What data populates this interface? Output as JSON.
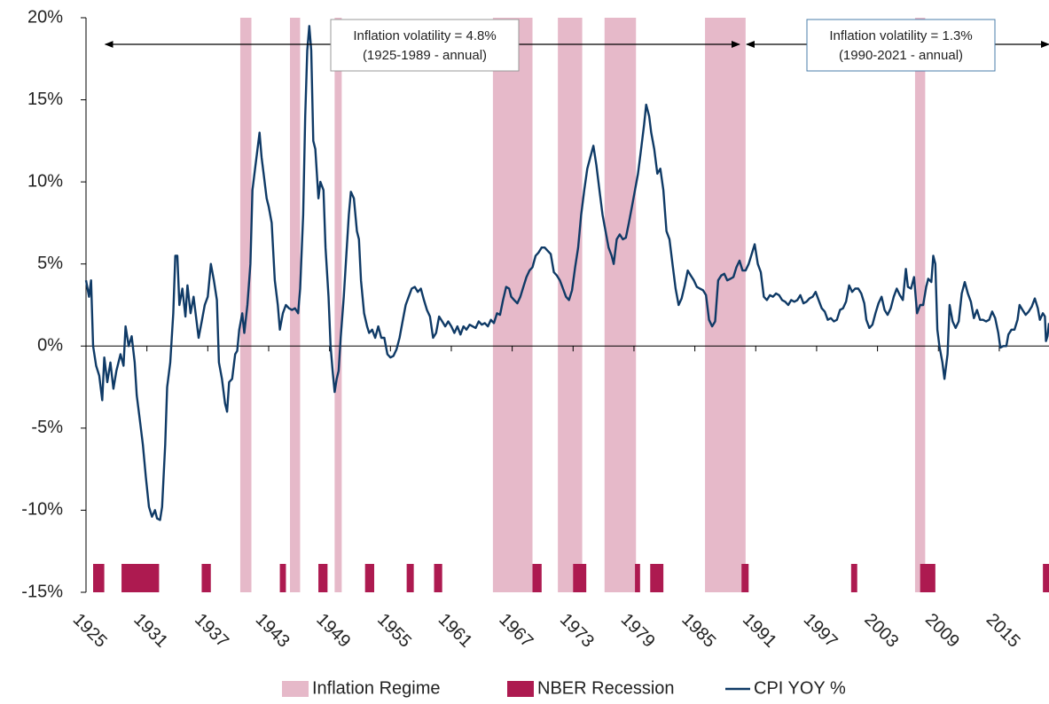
{
  "chart_data": {
    "type": "line",
    "xlim": [
      1925,
      2019.9
    ],
    "xticks": [
      1925,
      1931,
      1937,
      1943,
      1949,
      1955,
      1961,
      1967,
      1973,
      1979,
      1985,
      1991,
      1997,
      2003,
      2009,
      2015
    ],
    "ylim": [
      -15,
      20
    ],
    "yticks": [
      {
        "value": 20,
        "label": "20%"
      },
      {
        "value": 15,
        "label": "15%"
      },
      {
        "value": 10,
        "label": "10%"
      },
      {
        "value": 5,
        "label": "5%"
      },
      {
        "value": 0,
        "label": "0%"
      },
      {
        "value": -5,
        "label": "-5%"
      },
      {
        "value": -10,
        "label": "-10%"
      },
      {
        "value": -15,
        "label": "-15%"
      }
    ],
    "inflation_regimes": {
      "name": "Inflation Regime",
      "color": "#e6b9c9",
      "ranges": [
        [
          1940.2,
          1941.3
        ],
        [
          1945.1,
          1946.1
        ],
        [
          1949.5,
          1950.2
        ],
        [
          1965.1,
          1969.0
        ],
        [
          1971.5,
          1973.9
        ],
        [
          1976.1,
          1979.2
        ],
        [
          1986.0,
          1990.0
        ],
        [
          2006.7,
          2007.7
        ]
      ]
    },
    "recessions": {
      "name": "NBER Recession",
      "color": "#ad1a50",
      "ranges": [
        [
          1925.7,
          1926.8
        ],
        [
          1928.5,
          1932.2
        ],
        [
          1936.4,
          1937.3
        ],
        [
          1944.1,
          1944.7
        ],
        [
          1947.9,
          1948.8
        ],
        [
          1952.5,
          1953.4
        ],
        [
          1956.6,
          1957.3
        ],
        [
          1959.3,
          1960.1
        ],
        [
          1969.0,
          1969.9
        ],
        [
          1973.0,
          1974.3
        ],
        [
          1979.1,
          1979.6
        ],
        [
          1980.6,
          1981.9
        ],
        [
          1989.6,
          1990.3
        ],
        [
          2000.4,
          2001.0
        ],
        [
          2007.2,
          2008.7
        ],
        [
          2019.3,
          2019.9
        ]
      ]
    },
    "annotations": [
      {
        "lines": [
          "Inflation volatility = 4.8%",
          "(1925-1989 - annual)"
        ],
        "span": [
          1926.9,
          1989.4
        ]
      },
      {
        "lines": [
          "Inflation volatility = 1.3%",
          "(1990-2021 - annual)"
        ],
        "span": [
          1990.1,
          2019.9
        ]
      }
    ],
    "x": [
      1925.0,
      1925.3,
      1925.5,
      1925.7,
      1926.0,
      1926.3,
      1926.6,
      1926.8,
      1927.1,
      1927.4,
      1927.7,
      1928.0,
      1928.4,
      1928.7,
      1928.9,
      1929.2,
      1929.5,
      1929.8,
      1930.0,
      1930.3,
      1930.6,
      1930.9,
      1931.2,
      1931.5,
      1931.8,
      1932.0,
      1932.3,
      1932.5,
      1932.8,
      1933.0,
      1933.3,
      1933.6,
      1933.8,
      1934.0,
      1934.2,
      1934.5,
      1934.8,
      1935.0,
      1935.3,
      1935.6,
      1935.9,
      1936.1,
      1936.4,
      1936.7,
      1937.0,
      1937.3,
      1937.6,
      1937.9,
      1938.1,
      1938.4,
      1938.7,
      1938.9,
      1939.1,
      1939.4,
      1939.7,
      1939.9,
      1940.1,
      1940.4,
      1940.6,
      1940.9,
      1941.2,
      1941.4,
      1941.7,
      1941.9,
      1942.1,
      1942.3,
      1942.5,
      1942.8,
      1943.0,
      1943.3,
      1943.6,
      1943.9,
      1944.1,
      1944.4,
      1944.7,
      1945.0,
      1945.3,
      1945.6,
      1945.9,
      1946.1,
      1946.4,
      1946.6,
      1946.8,
      1947.0,
      1947.2,
      1947.4,
      1947.6,
      1947.9,
      1948.1,
      1948.4,
      1948.6,
      1948.9,
      1949.1,
      1949.3,
      1949.5,
      1949.7,
      1949.9,
      1950.1,
      1950.4,
      1950.7,
      1950.9,
      1951.1,
      1951.4,
      1951.7,
      1951.9,
      1952.1,
      1952.4,
      1952.7,
      1952.9,
      1953.2,
      1953.5,
      1953.8,
      1954.1,
      1954.4,
      1954.7,
      1955.0,
      1955.3,
      1955.6,
      1955.9,
      1956.2,
      1956.5,
      1956.8,
      1957.1,
      1957.4,
      1957.7,
      1958.0,
      1958.3,
      1958.6,
      1958.9,
      1959.2,
      1959.5,
      1959.8,
      1960.1,
      1960.4,
      1960.7,
      1961.0,
      1961.3,
      1961.6,
      1961.9,
      1962.2,
      1962.5,
      1962.8,
      1963.1,
      1963.4,
      1963.7,
      1964.0,
      1964.3,
      1964.6,
      1964.9,
      1965.2,
      1965.5,
      1965.8,
      1966.1,
      1966.4,
      1966.7,
      1966.9,
      1967.2,
      1967.5,
      1967.8,
      1968.1,
      1968.4,
      1968.7,
      1969.0,
      1969.3,
      1969.6,
      1969.9,
      1970.2,
      1970.5,
      1970.8,
      1971.1,
      1971.4,
      1971.7,
      1972.0,
      1972.3,
      1972.6,
      1972.9,
      1973.2,
      1973.5,
      1973.8,
      1974.1,
      1974.4,
      1974.7,
      1975.0,
      1975.3,
      1975.6,
      1975.9,
      1976.2,
      1976.5,
      1976.8,
      1977.0,
      1977.3,
      1977.6,
      1977.9,
      1978.2,
      1978.5,
      1978.8,
      1979.1,
      1979.4,
      1979.7,
      1980.0,
      1980.2,
      1980.5,
      1980.7,
      1981.0,
      1981.3,
      1981.6,
      1981.9,
      1982.2,
      1982.5,
      1982.8,
      1983.1,
      1983.4,
      1983.7,
      1984.0,
      1984.3,
      1984.6,
      1984.9,
      1985.2,
      1985.5,
      1985.8,
      1986.1,
      1986.4,
      1986.7,
      1987.0,
      1987.3,
      1987.6,
      1987.9,
      1988.2,
      1988.5,
      1988.8,
      1989.1,
      1989.4,
      1989.7,
      1990.0,
      1990.3,
      1990.6,
      1990.9,
      1991.2,
      1991.5,
      1991.8,
      1992.1,
      1992.4,
      1992.7,
      1993.0,
      1993.3,
      1993.6,
      1993.9,
      1994.2,
      1994.5,
      1994.8,
      1995.1,
      1995.4,
      1995.7,
      1996.0,
      1996.3,
      1996.6,
      1996.9,
      1997.2,
      1997.5,
      1997.8,
      1998.1,
      1998.4,
      1998.7,
      1999.0,
      1999.3,
      1999.6,
      1999.9,
      2000.2,
      2000.5,
      2000.8,
      2001.1,
      2001.4,
      2001.7,
      2001.9,
      2002.2,
      2002.5,
      2002.8,
      2003.1,
      2003.4,
      2003.7,
      2004.0,
      2004.3,
      2004.6,
      2004.9,
      2005.2,
      2005.5,
      2005.8,
      2006.0,
      2006.3,
      2006.6,
      2006.9,
      2007.2,
      2007.5,
      2007.8,
      2008.0,
      2008.3,
      2008.5,
      2008.7,
      2008.9,
      2009.1,
      2009.4,
      2009.6,
      2009.9,
      2010.1,
      2010.4,
      2010.7,
      2011.0,
      2011.3,
      2011.6,
      2011.9,
      2012.2,
      2012.5,
      2012.8,
      2013.1,
      2013.4,
      2013.7,
      2014.0,
      2014.3,
      2014.6,
      2014.9,
      2015.1,
      2015.4,
      2015.7,
      2015.9,
      2016.2,
      2016.5,
      2016.8,
      2017.0,
      2017.3,
      2017.6,
      2017.9,
      2018.2,
      2018.5,
      2018.8,
      2019.0,
      2019.3,
      2019.5,
      2019.6,
      2019.75,
      2019.9
    ],
    "series": [
      {
        "name": "CPI YOY %",
        "color": "#0f3a66",
        "values": [
          4.0,
          3.0,
          4.0,
          0,
          -1.2,
          -1.8,
          -3.3,
          -0.7,
          -2.2,
          -1.0,
          -2.6,
          -1.5,
          -0.5,
          -1.2,
          1.2,
          0.0,
          0.6,
          -1.0,
          -3.0,
          -4.5,
          -6.0,
          -8.0,
          -9.8,
          -10.4,
          -10.0,
          -10.5,
          -10.6,
          -9.8,
          -6.0,
          -2.5,
          -1.0,
          2.0,
          5.5,
          5.5,
          2.5,
          3.5,
          1.8,
          3.7,
          2.0,
          3.0,
          1.5,
          0.5,
          1.5,
          2.5,
          3.0,
          5.0,
          4.0,
          2.8,
          -1.0,
          -2.0,
          -3.5,
          -4.0,
          -2.2,
          -2.0,
          -0.5,
          -0.3,
          1.0,
          2.0,
          0.8,
          2.5,
          5.0,
          9.5,
          11.0,
          12.0,
          13.0,
          11.5,
          10.5,
          9.0,
          8.5,
          7.5,
          4.0,
          2.5,
          1.0,
          2.0,
          2.5,
          2.3,
          2.2,
          2.3,
          2.0,
          3.5,
          8.0,
          14.0,
          18.0,
          19.5,
          18.0,
          12.5,
          12.0,
          9.0,
          10.0,
          9.5,
          6.0,
          3.0,
          0.0,
          -1.5,
          -2.8,
          -2.0,
          -1.5,
          0.5,
          3.0,
          6.0,
          8.0,
          9.4,
          9.0,
          7.0,
          6.5,
          4.0,
          2.0,
          1.2,
          0.8,
          1.0,
          0.5,
          1.2,
          0.5,
          0.5,
          -0.5,
          -0.7,
          -0.6,
          -0.2,
          0.5,
          1.5,
          2.5,
          3.0,
          3.5,
          3.6,
          3.3,
          3.5,
          2.8,
          2.2,
          1.8,
          0.5,
          0.8,
          1.8,
          1.5,
          1.2,
          1.5,
          1.2,
          0.8,
          1.2,
          0.7,
          1.2,
          1.0,
          1.3,
          1.2,
          1.1,
          1.5,
          1.3,
          1.4,
          1.2,
          1.6,
          1.4,
          2.0,
          1.9,
          2.8,
          3.6,
          3.5,
          3.0,
          2.8,
          2.6,
          3.0,
          3.6,
          4.2,
          4.6,
          4.8,
          5.5,
          5.7,
          6.0,
          6.0,
          5.8,
          5.6,
          4.5,
          4.3,
          4.0,
          3.5,
          3.0,
          2.8,
          3.4,
          4.8,
          6.0,
          8.0,
          9.5,
          10.8,
          11.5,
          12.2,
          11.0,
          9.5,
          8.0,
          7.0,
          6.0,
          5.5,
          5.0,
          6.5,
          6.8,
          6.5,
          6.6,
          7.5,
          8.5,
          9.5,
          10.5,
          12.0,
          13.5,
          14.7,
          14.0,
          13.0,
          12.0,
          10.5,
          10.8,
          9.5,
          7.0,
          6.5,
          5.0,
          3.5,
          2.5,
          2.9,
          3.7,
          4.6,
          4.3,
          4.0,
          3.6,
          3.5,
          3.4,
          3.1,
          1.6,
          1.2,
          1.5,
          4.0,
          4.3,
          4.4,
          4.0,
          4.1,
          4.2,
          4.8,
          5.2,
          4.6,
          4.6,
          5.0,
          5.6,
          6.2,
          5.0,
          4.5,
          3.0,
          2.8,
          3.1,
          3.0,
          3.2,
          3.1,
          2.8,
          2.7,
          2.5,
          2.8,
          2.7,
          2.8,
          3.1,
          2.6,
          2.7,
          2.9,
          3.0,
          3.3,
          2.8,
          2.3,
          2.1,
          1.6,
          1.7,
          1.5,
          1.6,
          2.2,
          2.3,
          2.7,
          3.7,
          3.3,
          3.5,
          3.5,
          3.2,
          2.6,
          1.6,
          1.1,
          1.3,
          2.0,
          2.6,
          3.0,
          2.2,
          1.9,
          2.3,
          3.0,
          3.5,
          3.1,
          2.8,
          4.7,
          3.6,
          3.5,
          4.2,
          2.0,
          2.5,
          2.5,
          3.6,
          4.1,
          3.9,
          5.5,
          5.0,
          1.0,
          0.0,
          -1.0,
          -2.0,
          -0.5,
          2.5,
          1.5,
          1.1,
          1.5,
          3.2,
          3.9,
          3.2,
          2.7,
          1.7,
          2.2,
          1.6,
          1.6,
          1.5,
          1.6,
          2.1,
          1.7,
          0.8,
          -0.1,
          0.0,
          0.0,
          0.7,
          1.0,
          1.0,
          1.6,
          2.5,
          2.2,
          1.9,
          2.1,
          2.4,
          2.9,
          2.3,
          1.6,
          2.0,
          1.8,
          0.3,
          0.6,
          1.4
        ]
      }
    ]
  }
}
